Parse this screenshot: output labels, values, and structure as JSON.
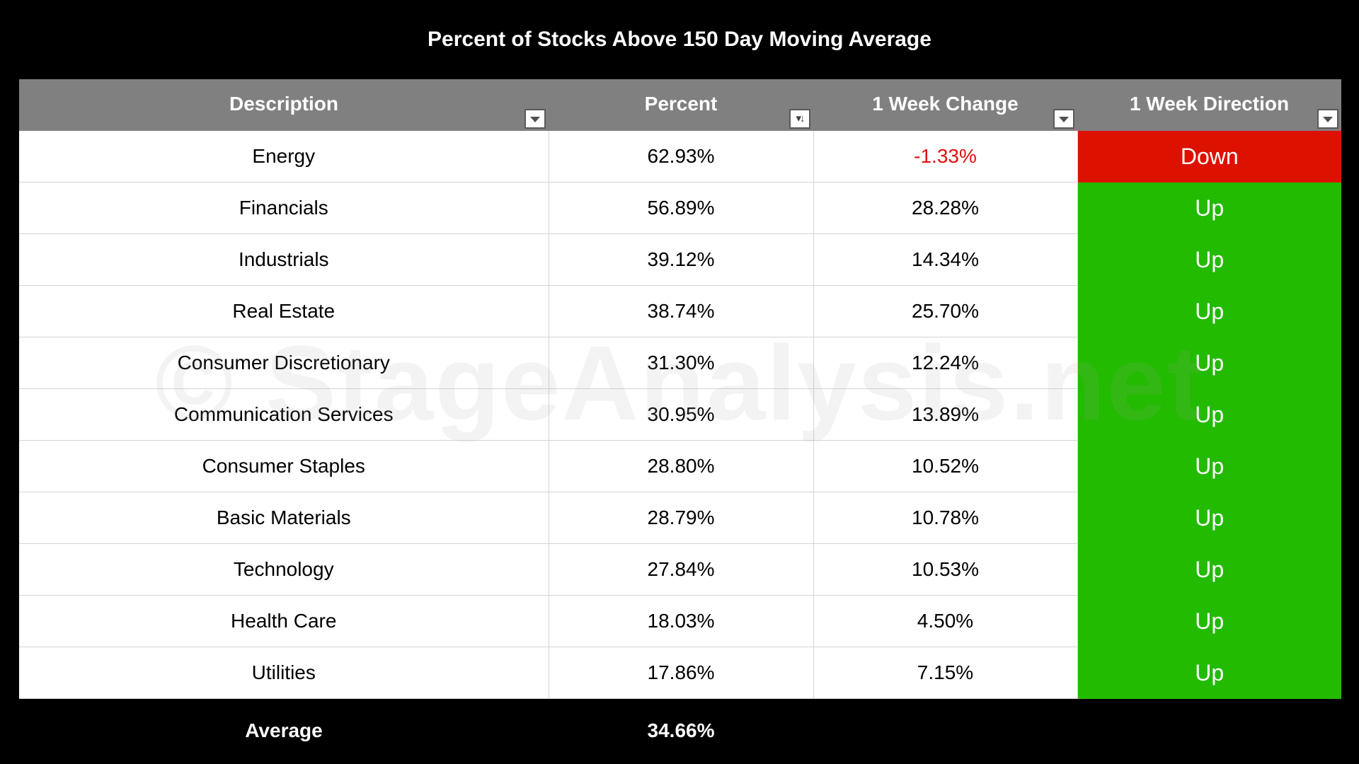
{
  "title": "Percent of Stocks Above 150 Day Moving Average",
  "watermark": "© StageAnalysis.net",
  "columns": [
    {
      "label": "Description",
      "filter_glyph": "▼",
      "sorted": false
    },
    {
      "label": "Percent",
      "filter_glyph": "↓",
      "sorted": true
    },
    {
      "label": "1 Week Change",
      "filter_glyph": "▼",
      "sorted": false
    },
    {
      "label": "1 Week Direction",
      "filter_glyph": "▼",
      "sorted": false
    }
  ],
  "rows": [
    {
      "description": "Energy",
      "percent": "62.93%",
      "change": "-1.33%",
      "direction": "Down"
    },
    {
      "description": "Financials",
      "percent": "56.89%",
      "change": "28.28%",
      "direction": "Up"
    },
    {
      "description": "Industrials",
      "percent": "39.12%",
      "change": "14.34%",
      "direction": "Up"
    },
    {
      "description": "Real Estate",
      "percent": "38.74%",
      "change": "25.70%",
      "direction": "Up"
    },
    {
      "description": "Consumer Discretionary",
      "percent": "31.30%",
      "change": "12.24%",
      "direction": "Up"
    },
    {
      "description": "Communication Services",
      "percent": "30.95%",
      "change": "13.89%",
      "direction": "Up"
    },
    {
      "description": "Consumer Staples",
      "percent": "28.80%",
      "change": "10.52%",
      "direction": "Up"
    },
    {
      "description": "Basic Materials",
      "percent": "28.79%",
      "change": "10.78%",
      "direction": "Up"
    },
    {
      "description": "Technology",
      "percent": "27.84%",
      "change": "10.53%",
      "direction": "Up"
    },
    {
      "description": "Health Care",
      "percent": "18.03%",
      "change": "4.50%",
      "direction": "Up"
    },
    {
      "description": "Utilities",
      "percent": "17.86%",
      "change": "7.15%",
      "direction": "Up"
    }
  ],
  "footer": {
    "label": "Average",
    "percent": "34.66%"
  },
  "colors": {
    "background": "#000000",
    "header": "#808080",
    "up": "#22bb00",
    "down": "#dd1100",
    "negative_text": "#e01010"
  }
}
